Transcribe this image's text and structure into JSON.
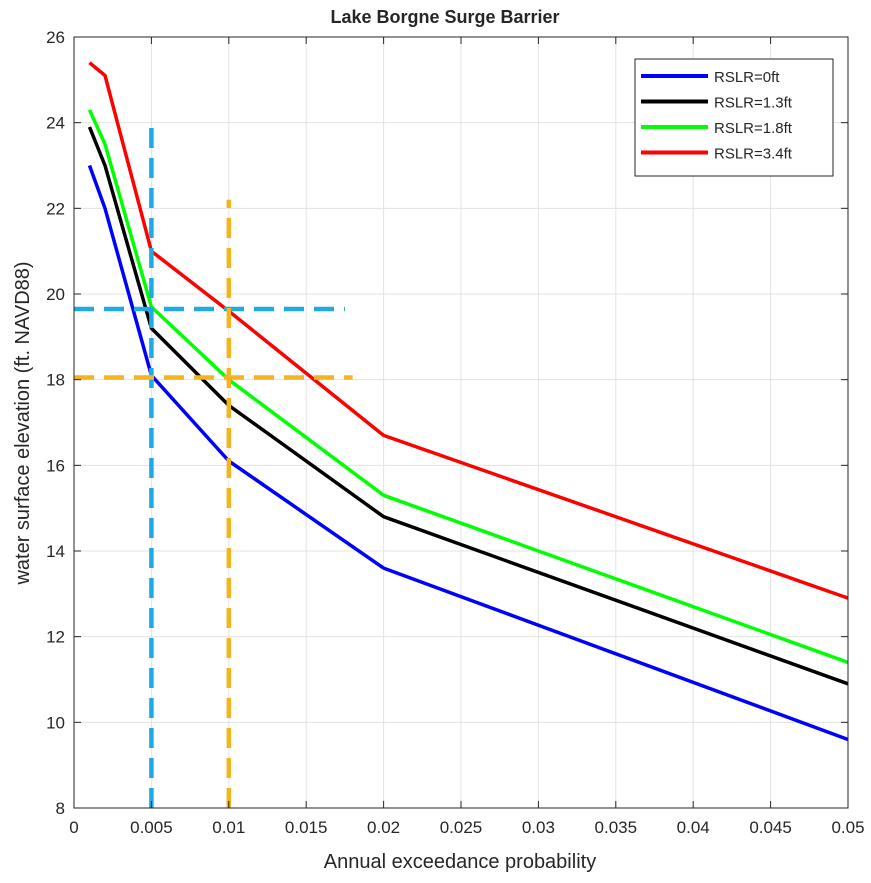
{
  "colors": {
    "background": "#ffffff",
    "plot_background": "#ffffff",
    "grid": "#e3e3e3",
    "axis": "#262626",
    "text": "#262626"
  },
  "chart_data": {
    "type": "line",
    "title": "Lake Borgne Surge Barrier",
    "xlabel": "Annual exceedance probability",
    "ylabel": "water surface elevation (ft. NAVD88)",
    "xlim": [
      0,
      0.05
    ],
    "ylim": [
      8,
      26
    ],
    "grid": true,
    "legend_position": "top-right",
    "x_ticks": [
      0,
      0.005,
      0.01,
      0.015,
      0.02,
      0.025,
      0.03,
      0.035,
      0.04,
      0.045,
      0.05
    ],
    "x_tick_labels": [
      "0",
      "0.005",
      "0.01",
      "0.015",
      "0.02",
      "0.025",
      "0.03",
      "0.035",
      "0.04",
      "0.045",
      "0.05"
    ],
    "y_ticks": [
      8,
      10,
      12,
      14,
      16,
      18,
      20,
      22,
      24,
      26
    ],
    "y_tick_labels": [
      "8",
      "10",
      "12",
      "14",
      "16",
      "18",
      "20",
      "22",
      "24",
      "26"
    ],
    "series": [
      {
        "name": "RSLR=0ft",
        "color": "#0000ff",
        "x": [
          0.001,
          0.002,
          0.005,
          0.01,
          0.02,
          0.05
        ],
        "y": [
          23.0,
          22.0,
          18.1,
          16.1,
          13.6,
          9.6
        ]
      },
      {
        "name": "RSLR=1.3ft",
        "color": "#000000",
        "x": [
          0.001,
          0.002,
          0.005,
          0.01,
          0.02,
          0.05
        ],
        "y": [
          23.9,
          23.0,
          19.2,
          17.4,
          14.8,
          10.9
        ]
      },
      {
        "name": "RSLR=1.8ft",
        "color": "#00ff00",
        "x": [
          0.001,
          0.002,
          0.005,
          0.01,
          0.02,
          0.05
        ],
        "y": [
          24.3,
          23.5,
          19.7,
          18.0,
          15.3,
          11.4
        ]
      },
      {
        "name": "RSLR=3.4ft",
        "color": "#ff0000",
        "x": [
          0.001,
          0.002,
          0.005,
          0.01,
          0.02,
          0.05
        ],
        "y": [
          25.4,
          25.1,
          21.0,
          19.6,
          16.7,
          12.9
        ]
      }
    ],
    "reference_lines": [
      {
        "color": "#1eaae6",
        "orientation": "vertical",
        "x": 0.005,
        "from": 8,
        "to": 24
      },
      {
        "color": "#1eaae6",
        "orientation": "horizontal",
        "y": 19.65,
        "from": 0,
        "to": 0.0175
      },
      {
        "color": "#f5b41e",
        "orientation": "vertical",
        "x": 0.01,
        "from": 8,
        "to": 22.2
      },
      {
        "color": "#f5b41e",
        "orientation": "horizontal",
        "y": 18.05,
        "from": 0,
        "to": 0.018
      }
    ]
  }
}
